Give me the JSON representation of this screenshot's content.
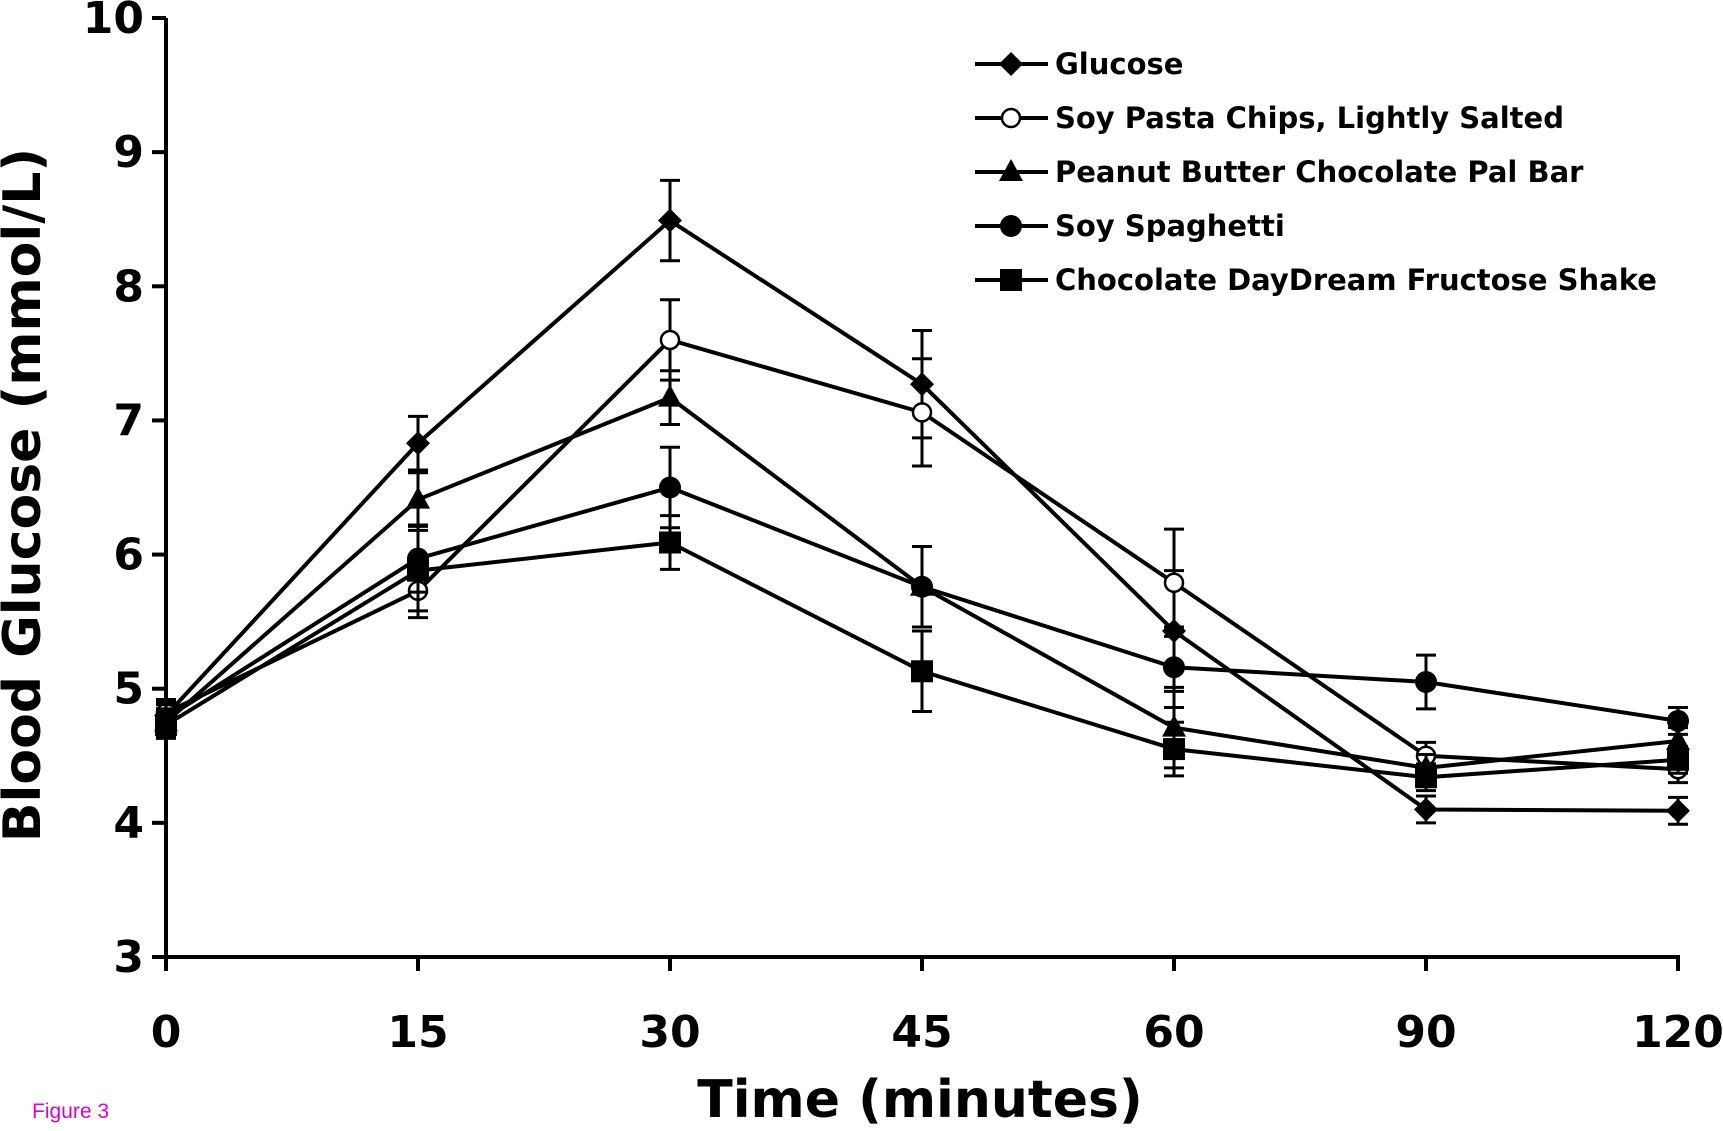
{
  "figure_label": "Figure 3",
  "chart_data": {
    "type": "line",
    "xlabel": "Time (minutes)",
    "ylabel": "Blood Glucose (mmol/L)",
    "categories": [
      "0",
      "15",
      "30",
      "45",
      "60",
      "90",
      "120"
    ],
    "yticks": [
      "3",
      "4",
      "5",
      "6",
      "7",
      "8",
      "9",
      "10"
    ],
    "ylim": [
      3,
      10
    ],
    "grid": false,
    "legend_position": "top-right",
    "series": [
      {
        "name": "Glucose",
        "marker": "diamond",
        "values": [
          4.8,
          6.83,
          8.49,
          7.27,
          5.43,
          4.1,
          4.09
        ],
        "errors": [
          0.1,
          0.2,
          0.3,
          0.4,
          0.45,
          0.1,
          0.1
        ]
      },
      {
        "name": "Soy Pasta Chips, Lightly Salted",
        "marker": "open-circle",
        "values": [
          4.82,
          5.73,
          7.6,
          7.06,
          5.79,
          4.5,
          4.4
        ],
        "errors": [
          0.1,
          0.2,
          0.3,
          0.4,
          0.4,
          0.1,
          0.1
        ]
      },
      {
        "name": "Peanut Butter Chocolate Pal Bar",
        "marker": "triangle",
        "values": [
          4.75,
          6.41,
          7.17,
          5.76,
          4.71,
          4.41,
          4.61
        ],
        "errors": [
          0.1,
          0.2,
          0.2,
          0.3,
          0.3,
          0.1,
          0.1
        ]
      },
      {
        "name": "Soy Spaghetti",
        "marker": "filled-circle",
        "values": [
          4.78,
          5.97,
          6.5,
          5.76,
          5.16,
          5.05,
          4.76
        ],
        "errors": [
          0.1,
          0.25,
          0.3,
          0.3,
          0.3,
          0.2,
          0.1
        ]
      },
      {
        "name": "Chocolate DayDream Fructose Shake",
        "marker": "square",
        "values": [
          4.73,
          5.88,
          6.09,
          5.13,
          4.55,
          4.34,
          4.47
        ],
        "errors": [
          0.1,
          0.3,
          0.2,
          0.3,
          0.2,
          0.1,
          0.1
        ]
      }
    ]
  },
  "colors": {
    "series": "#000000",
    "figure_label": "#e000d0"
  }
}
